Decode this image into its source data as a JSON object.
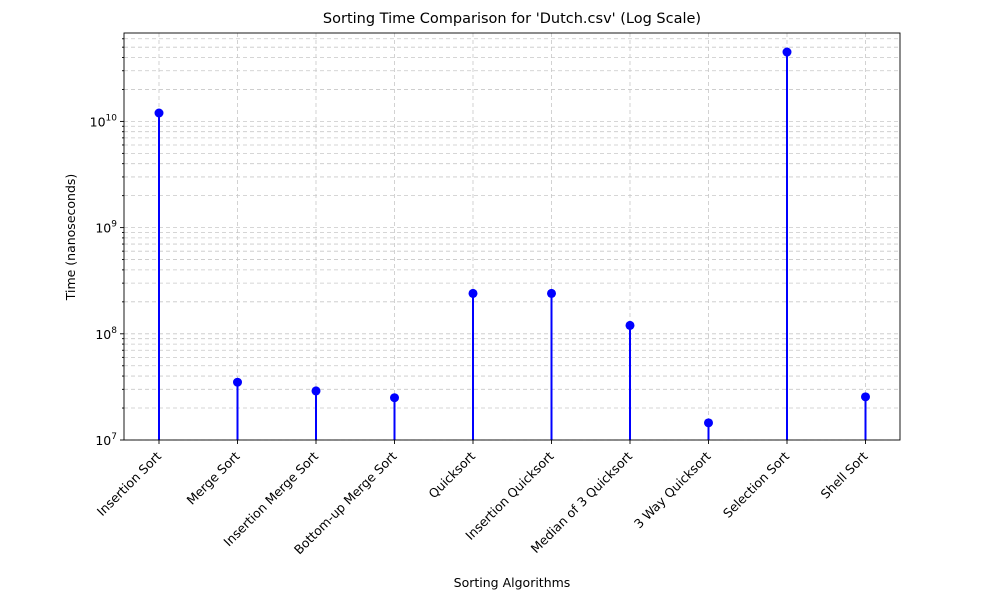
{
  "chart_data": {
    "type": "lollipop",
    "title": "Sorting Time Comparison for 'Dutch.csv' (Log Scale)",
    "xlabel": "Sorting Algorithms",
    "ylabel": "Time (nanoseconds)",
    "y_scale": "log",
    "ylim": [
      10000000,
      68000000000
    ],
    "y_ticks": [
      {
        "value": 10000000,
        "base": "10",
        "exp": "7"
      },
      {
        "value": 100000000,
        "base": "10",
        "exp": "8"
      },
      {
        "value": 1000000000,
        "base": "10",
        "exp": "9"
      },
      {
        "value": 10000000000,
        "base": "10",
        "exp": "10"
      }
    ],
    "grid": true,
    "categories": [
      "Insertion Sort",
      "Merge Sort",
      "Insertion Merge Sort",
      "Bottom-up Merge Sort",
      "Quicksort",
      "Insertion Quicksort",
      "Median of 3 Quicksort",
      "3 Way Quicksort",
      "Selection Sort",
      "Shell Sort"
    ],
    "values": [
      12000000000,
      35000000,
      29000000,
      25000000,
      240000000,
      240000000,
      120000000,
      14500000,
      45000000000,
      25500000
    ],
    "color": "#0000ff"
  }
}
